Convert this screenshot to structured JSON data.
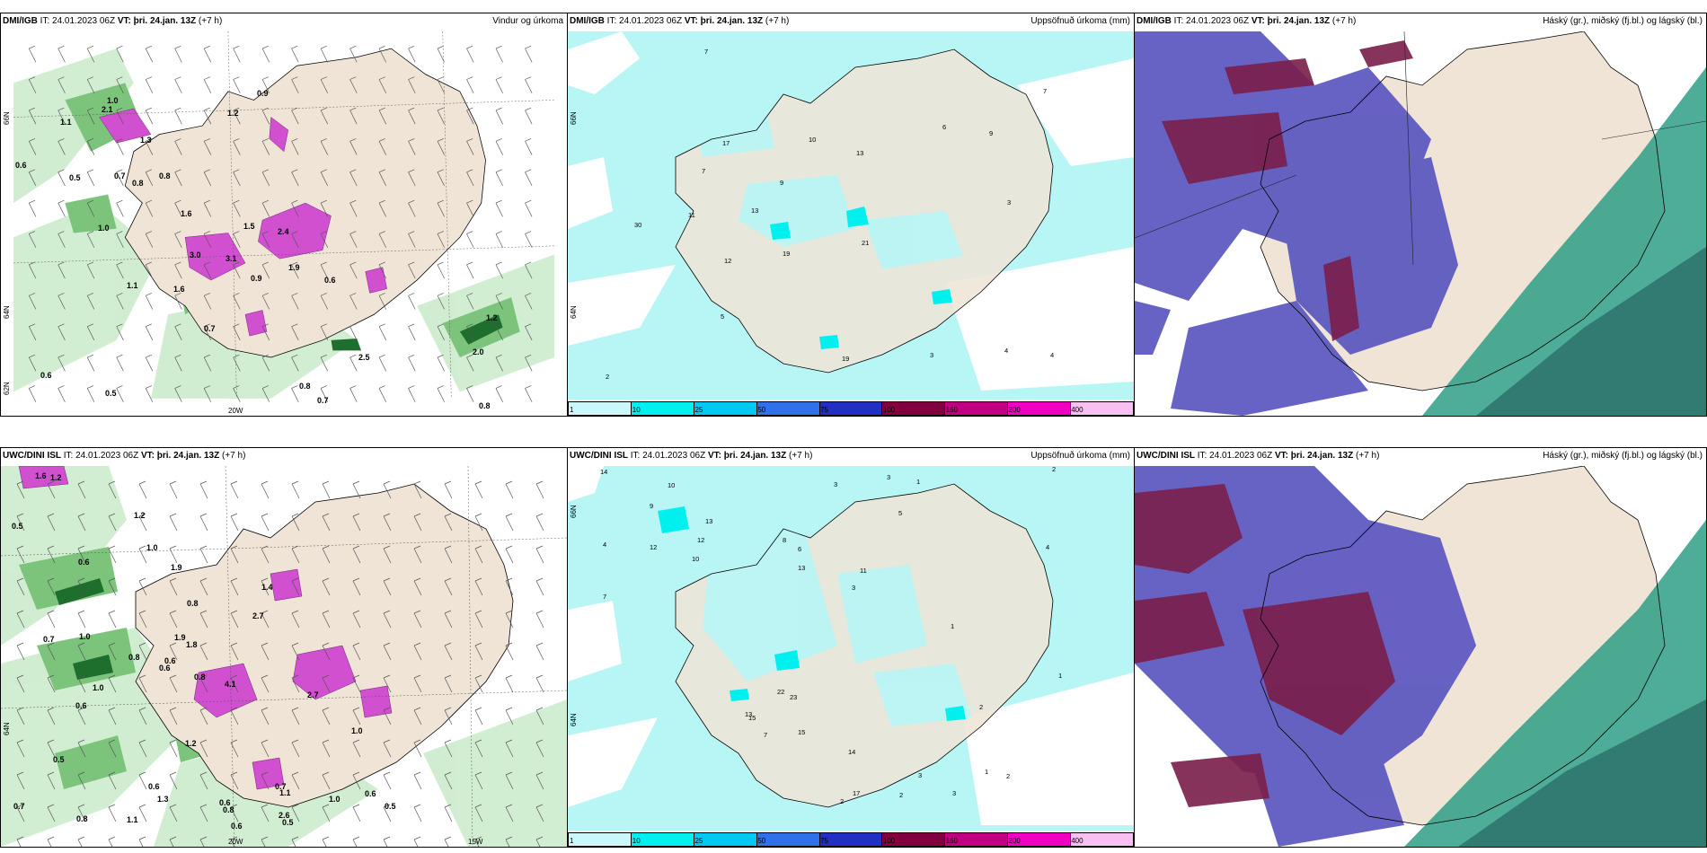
{
  "panels": [
    {
      "id": "dmi-wind",
      "model": "DMI/IGB",
      "it_label": "IT:",
      "it_value": "24.01.2023 06Z",
      "vt_label": "VT:",
      "vt_value": "þri. 24.jan. 13Z",
      "lead": "(+7 h)",
      "product": "Vindur og úrkoma",
      "lon_labels": [
        "20W"
      ],
      "lat_labels": [
        "66N",
        "64N",
        "62N"
      ],
      "values": [
        "0.9",
        "1.2",
        "1.1",
        "1.0",
        "2.1",
        "1.3",
        "0.6",
        "0.5",
        "0.7",
        "0.8",
        "0.8",
        "1.6",
        "1.0",
        "2.4",
        "3.0",
        "3.1",
        "1.9",
        "0.9",
        "0.6",
        "1.1",
        "0.7",
        "2.5",
        "2.0",
        "1.6",
        "0.6",
        "0.5",
        "0.8",
        "0.7",
        "1.2",
        "1.5",
        "0.8"
      ]
    },
    {
      "id": "dmi-precip",
      "model": "DMI/IGB",
      "it_label": "IT:",
      "it_value": "24.01.2023 06Z",
      "vt_label": "VT:",
      "vt_value": "þri. 24.jan. 13Z",
      "lead": "(+7 h)",
      "product": "Uppsöfnuð úrkoma (mm)",
      "lat_labels": [
        "66N",
        "64N"
      ],
      "values": [
        "7",
        "7",
        "17",
        "10",
        "13",
        "6",
        "9",
        "9",
        "7",
        "13",
        "11",
        "3",
        "30",
        "12",
        "19",
        "21",
        "5",
        "2",
        "3",
        "4",
        "4",
        "19"
      ]
    },
    {
      "id": "dmi-cloud",
      "model": "DMI/IGB",
      "it_label": "IT:",
      "it_value": "24.01.2023 06Z",
      "vt_label": "VT:",
      "vt_value": "þri. 24.jan. 13Z",
      "lead": "(+7 h)",
      "product": "Háský (gr.), miðský (fj.bl.) og lágský (bl.)"
    },
    {
      "id": "uwc-wind",
      "model": "UWC/DINI ISL",
      "it_label": "IT:",
      "it_value": "24.01.2023 06Z",
      "vt_label": "VT:",
      "vt_value": "þri. 24.jan. 13Z",
      "lead": "(+7 h)",
      "product": "",
      "lon_labels": [
        "20W",
        "15W"
      ],
      "lat_labels": [
        "64N"
      ],
      "values": [
        "1.6",
        "1.2",
        "0.5",
        "1.2",
        "1.0",
        "0.6",
        "1.9",
        "0.8",
        "1.4",
        "2.7",
        "0.7",
        "1.0",
        "1.9",
        "0.8",
        "0.6",
        "0.6",
        "1.8",
        "0.8",
        "4.1",
        "0.6",
        "1.0",
        "2.7",
        "1.0",
        "0.5",
        "1.2",
        "0.6",
        "1.3",
        "0.6",
        "0.8",
        "0.7",
        "0.6",
        "0.5",
        "0.7",
        "0.8",
        "1.1",
        "1.1",
        "2.6",
        "1.0",
        "0.5",
        "0.6"
      ]
    },
    {
      "id": "uwc-precip",
      "model": "UWC/DINI ISL",
      "it_label": "IT:",
      "it_value": "24.01.2023 06Z",
      "vt_label": "VT:",
      "vt_value": "þri. 24.jan. 13Z",
      "lead": "(+7 h)",
      "product": "Uppsöfnuð úrkoma (mm)",
      "lat_labels": [
        "66N",
        "64N"
      ],
      "values": [
        "14",
        "10",
        "3",
        "3",
        "1",
        "2",
        "4",
        "7",
        "9",
        "13",
        "12",
        "12",
        "8",
        "10",
        "6",
        "11",
        "3",
        "5",
        "13",
        "4",
        "1",
        "1",
        "2",
        "22",
        "23",
        "13",
        "15",
        "7",
        "15",
        "14",
        "17",
        "2",
        "3",
        "3",
        "2",
        "1",
        "2"
      ]
    },
    {
      "id": "uwc-cloud",
      "model": "UWC/DINI ISL",
      "it_label": "IT:",
      "it_value": "24.01.2023 06Z",
      "vt_label": "VT:",
      "vt_value": "þri. 24.jan. 13Z",
      "lead": "(+7 h)",
      "product": "Háský (gr.), miðský (fj.bl.) og lágský (bl.)"
    }
  ],
  "legend": {
    "ticks": [
      "1",
      "10",
      "25",
      "50",
      "75",
      "100",
      "150",
      "200",
      "400"
    ],
    "colors": [
      "#c8f8f8",
      "#00f0f0",
      "#00c8f0",
      "#3070e8",
      "#2030c0",
      "#800040",
      "#c00080",
      "#f000c0",
      "#f8c0f0"
    ]
  },
  "colors": {
    "land": "#efe4d6",
    "sea_precip": "#b8f6f6",
    "wind_green_light": "#cdeccd",
    "wind_green_mid": "#7cc47c",
    "wind_green_dark": "#1e6e2e",
    "magenta": "#d050d0",
    "cloud_high": "#2e9f86",
    "cloud_mid": "#5a56c0",
    "cloud_low": "#7a1e4a"
  }
}
